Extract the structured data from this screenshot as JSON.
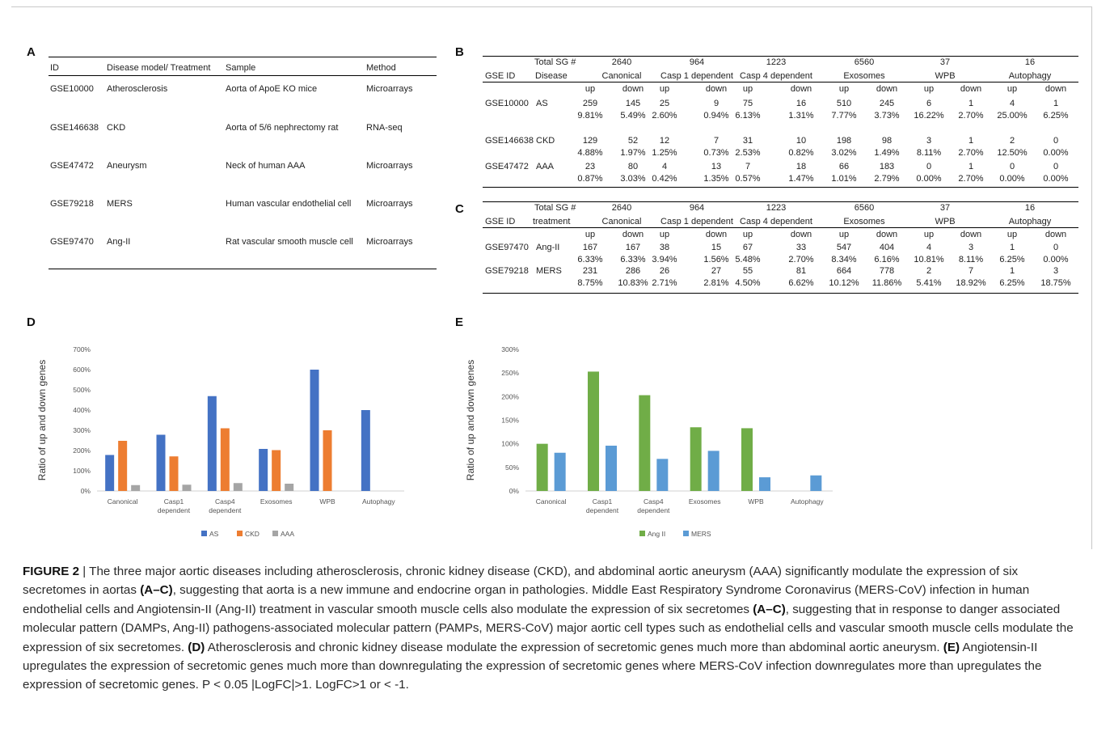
{
  "panel_labels": [
    "A",
    "B",
    "C",
    "D",
    "E"
  ],
  "table_a": {
    "headers": [
      "ID",
      "Disease model/ Treatment",
      "Sample",
      "Method"
    ],
    "rows": [
      [
        "GSE10000",
        "Atherosclerosis",
        "Aorta of ApoE KO mice",
        "Microarrays"
      ],
      [
        "GSE146638",
        "CKD",
        "Aorta of 5/6 nephrectomy rat",
        "RNA-seq"
      ],
      [
        "GSE47472",
        "Aneurysm",
        "Neck of human AAA",
        "Microarrays"
      ],
      [
        "GSE79218",
        "MERS",
        "Human vascular endothelial cell",
        "Microarrays"
      ],
      [
        "GSE97470",
        "Ang-II",
        "Rat vascular smooth muscle cell",
        "Microarrays"
      ]
    ]
  },
  "table_b": {
    "total_label": "Total SG #",
    "id_label": "GSE ID",
    "type_label": "Disease",
    "totals": [
      "2640",
      "964",
      "1223",
      "6560",
      "37",
      "16"
    ],
    "groups": [
      "Canonical",
      "Casp 1 dependent",
      "Casp 4 dependent",
      "Exosomes",
      "WPB",
      "Autophagy"
    ],
    "updown": [
      "up",
      "down"
    ],
    "rows": [
      {
        "id": "GSE10000",
        "type": "AS",
        "counts": [
          "259",
          "145",
          "25",
          "9",
          "75",
          "16",
          "510",
          "245",
          "6",
          "1",
          "4",
          "1"
        ],
        "pcts": [
          "9.81%",
          "5.49%",
          "2.60%",
          "0.94%",
          "6.13%",
          "1.31%",
          "7.77%",
          "3.73%",
          "16.22%",
          "2.70%",
          "25.00%",
          "6.25%"
        ]
      },
      {
        "id": "GSE146638",
        "type": "CKD",
        "counts": [
          "129",
          "52",
          "12",
          "7",
          "31",
          "10",
          "198",
          "98",
          "3",
          "1",
          "2",
          "0"
        ],
        "pcts": [
          "4.88%",
          "1.97%",
          "1.25%",
          "0.73%",
          "2.53%",
          "0.82%",
          "3.02%",
          "1.49%",
          "8.11%",
          "2.70%",
          "12.50%",
          "0.00%"
        ]
      },
      {
        "id": "GSE47472",
        "type": "AAA",
        "counts": [
          "23",
          "80",
          "4",
          "13",
          "7",
          "18",
          "66",
          "183",
          "0",
          "1",
          "0",
          "0"
        ],
        "pcts": [
          "0.87%",
          "3.03%",
          "0.42%",
          "1.35%",
          "0.57%",
          "1.47%",
          "1.01%",
          "2.79%",
          "0.00%",
          "2.70%",
          "0.00%",
          "0.00%"
        ]
      }
    ]
  },
  "table_c": {
    "total_label": "Total SG #",
    "id_label": "GSE ID",
    "type_label": "treatment",
    "totals": [
      "2640",
      "964",
      "1223",
      "6560",
      "37",
      "16"
    ],
    "groups": [
      "Canonical",
      "Casp 1 dependent",
      "Casp 4 dependent",
      "Exosomes",
      "WPB",
      "Autophagy"
    ],
    "updown": [
      "up",
      "down"
    ],
    "rows": [
      {
        "id": "GSE97470",
        "type": "Ang-II",
        "counts": [
          "167",
          "167",
          "38",
          "15",
          "67",
          "33",
          "547",
          "404",
          "4",
          "3",
          "1",
          "0"
        ],
        "pcts": [
          "6.33%",
          "6.33%",
          "3.94%",
          "1.56%",
          "5.48%",
          "2.70%",
          "8.34%",
          "6.16%",
          "10.81%",
          "8.11%",
          "6.25%",
          "0.00%"
        ]
      },
      {
        "id": "GSE79218",
        "type": "MERS",
        "counts": [
          "231",
          "286",
          "26",
          "27",
          "55",
          "81",
          "664",
          "778",
          "2",
          "7",
          "1",
          "3"
        ],
        "pcts": [
          "8.75%",
          "10.83%",
          "2.71%",
          "2.81%",
          "4.50%",
          "6.62%",
          "10.12%",
          "11.86%",
          "5.41%",
          "18.92%",
          "6.25%",
          "18.75%"
        ]
      }
    ]
  },
  "chart_data": [
    {
      "type": "bar",
      "panel": "D",
      "ylabel": "Ratio of up and down genes",
      "ylim": [
        0,
        700
      ],
      "yticks": [
        "0%",
        "100%",
        "200%",
        "300%",
        "400%",
        "500%",
        "600%",
        "700%"
      ],
      "categories": [
        [
          "Canonical"
        ],
        [
          "Casp1",
          "dependent"
        ],
        [
          "Casp4",
          "dependent"
        ],
        [
          "Exosomes"
        ],
        [
          "WPB"
        ],
        [
          "Autophagy"
        ]
      ],
      "series": [
        {
          "name": "AS",
          "color": "#4472C4",
          "values": [
            178,
            278,
            469,
            208,
            600,
            400
          ]
        },
        {
          "name": "CKD",
          "color": "#ED7D31",
          "values": [
            248,
            171,
            310,
            202,
            300,
            null
          ]
        },
        {
          "name": "AAA",
          "color": "#A5A5A5",
          "values": [
            29,
            31,
            39,
            36,
            null,
            null
          ]
        }
      ],
      "legend": "bottom",
      "grid": false
    },
    {
      "type": "bar",
      "panel": "E",
      "ylabel": "Ratio of up and down genes",
      "ylim": [
        0,
        300
      ],
      "yticks": [
        "0%",
        "50%",
        "100%",
        "150%",
        "200%",
        "250%",
        "300%"
      ],
      "categories": [
        [
          "Canonical"
        ],
        [
          "Casp1",
          "dependent"
        ],
        [
          "Casp4",
          "dependent"
        ],
        [
          "Exosomes"
        ],
        [
          "WPB"
        ],
        [
          "Autophagy"
        ]
      ],
      "series": [
        {
          "name": "Ang II",
          "color": "#70AD47",
          "values": [
            100,
            253,
            203,
            135,
            133,
            null
          ]
        },
        {
          "name": "MERS",
          "color": "#5B9BD5",
          "values": [
            81,
            96,
            68,
            85,
            29,
            33
          ]
        }
      ],
      "legend": "bottom",
      "grid": false
    }
  ],
  "caption": {
    "fig": "FIGURE 2",
    "sep": " | ",
    "t1": "The three major aortic diseases including atherosclerosis, chronic kidney disease (CKD), and abdominal aortic aneurysm (AAA) significantly modulate the expression of six secretomes in aortas ",
    "r1": "(A–C)",
    "t2": ", suggesting that aorta is a new immune and endocrine organ in pathologies. Middle East Respiratory Syndrome Coronavirus (MERS-CoV) infection in human endothelial cells and Angiotensin-II (Ang-II) treatment in vascular smooth muscle cells also modulate the expression of six secretomes ",
    "r2": "(A–C)",
    "t3": ", suggesting that in response to danger associated molecular pattern (DAMPs, Ang-II) pathogens-associated molecular pattern (PAMPs, MERS-CoV) major aortic cell types such as endothelial cells and vascular smooth muscle cells modulate the expression of six secretomes. ",
    "r3": "(D)",
    "t4": " Atherosclerosis and chronic kidney disease modulate the expression of secretomic genes much more than abdominal aortic aneurysm. ",
    "r4": "(E)",
    "t5": " Angiotensin-II upregulates the expression of secretomic genes much more than downregulating the expression of secretomic genes where MERS-CoV infection downregulates more than upregulates the expression of secretomic genes.  P < 0.05 |LogFC|>1. LogFC>1 or < -1."
  }
}
